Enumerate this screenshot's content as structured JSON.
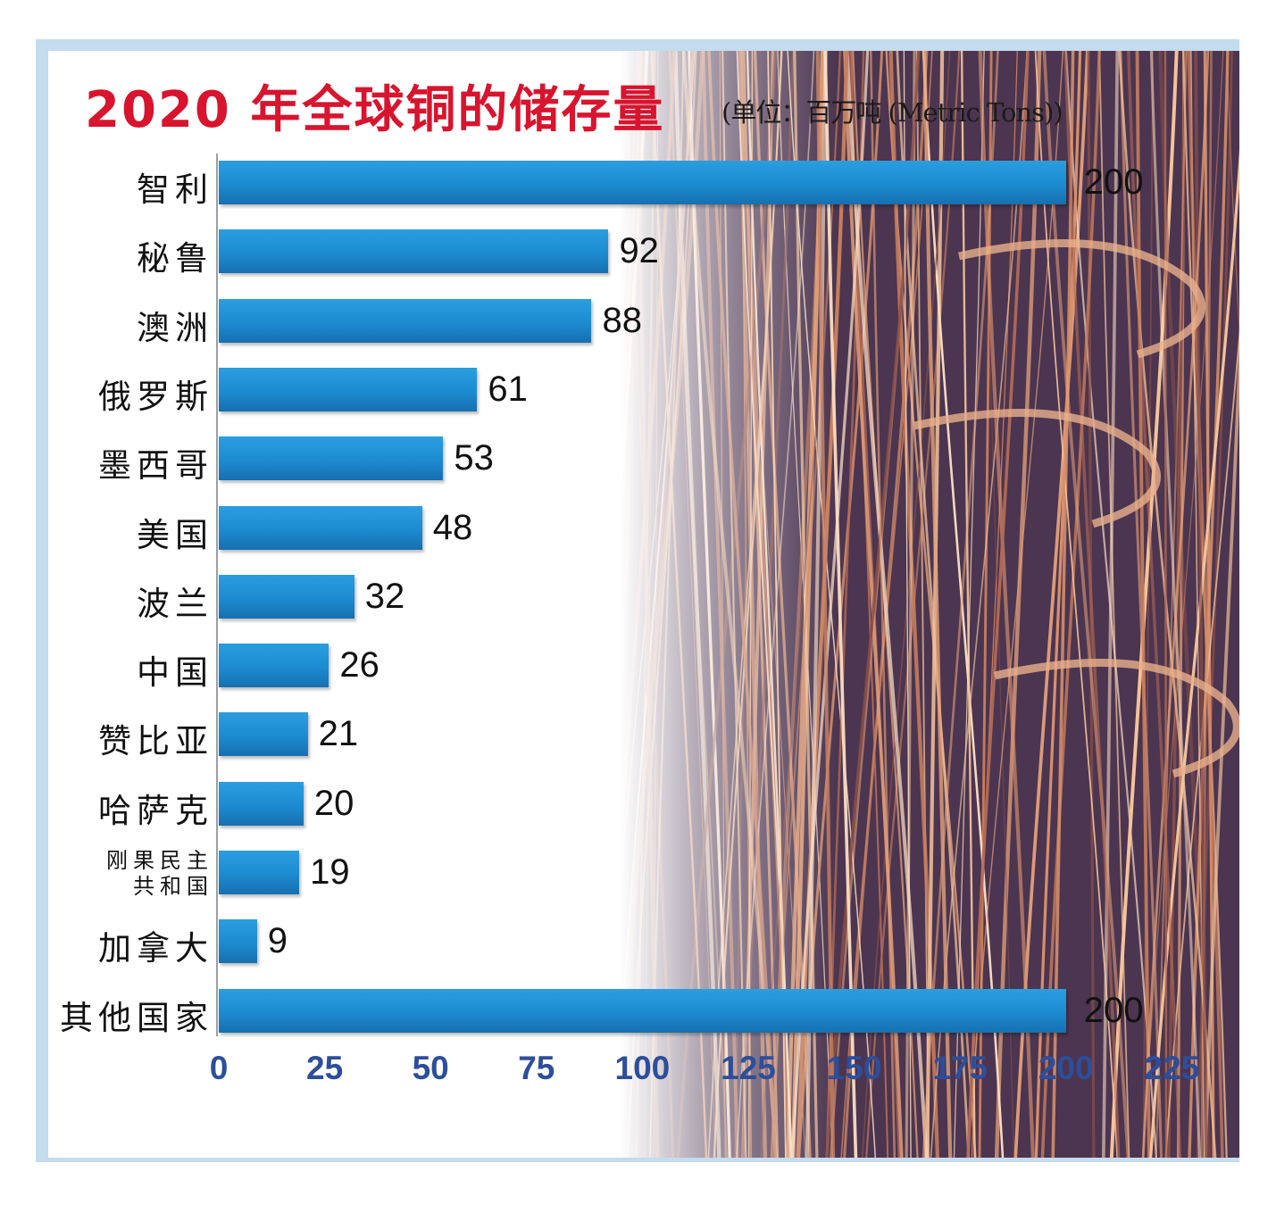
{
  "chart_data": {
    "type": "bar",
    "orientation": "horizontal",
    "title": "2020 年全球铜的储存量",
    "subtitle": "(单位：百万吨 (Metric Tons))",
    "categories": [
      "智利",
      "秘鲁",
      "澳洲",
      "俄罗斯",
      "墨西哥",
      "美国",
      "波兰",
      "中国",
      "赞比亚",
      "哈萨克",
      "刚果民主共和国",
      "加拿大",
      "其他国家"
    ],
    "category_lines": [
      [
        "智利"
      ],
      [
        "秘鲁"
      ],
      [
        "澳洲"
      ],
      [
        "俄罗斯"
      ],
      [
        "墨西哥"
      ],
      [
        "美国"
      ],
      [
        "波兰"
      ],
      [
        "中国"
      ],
      [
        "赞比亚"
      ],
      [
        "哈萨克"
      ],
      [
        "刚果民主",
        "共和国"
      ],
      [
        "加拿大"
      ],
      [
        "其他国家"
      ]
    ],
    "values": [
      200,
      92,
      88,
      61,
      53,
      48,
      32,
      26,
      21,
      20,
      19,
      9,
      200
    ],
    "xlim": [
      0,
      225
    ],
    "xticks": [
      0,
      25,
      50,
      75,
      100,
      125,
      150,
      175,
      200,
      225
    ],
    "grid": false,
    "legend": "none",
    "colors": {
      "bar": "#1c8bd0",
      "title": "#d8142e",
      "tick": "#2d4e9a"
    }
  }
}
